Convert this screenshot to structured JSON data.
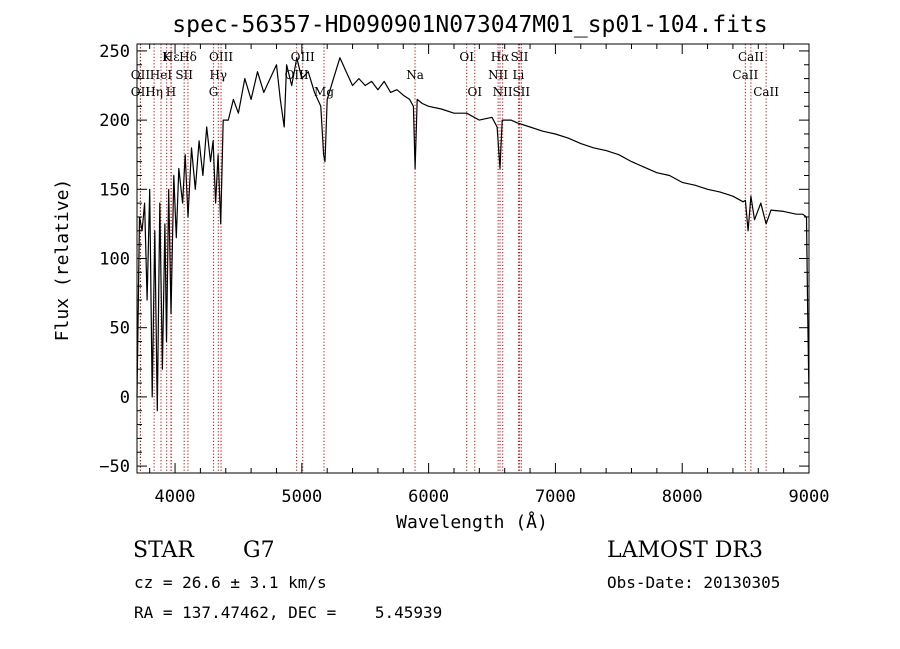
{
  "chart_data": {
    "type": "line",
    "title": "spec-56357-HD090901N073047M01_sp01-104.fits",
    "xlabel": "Wavelength (Å)",
    "ylabel": "Flux (relative)",
    "xlim": [
      3700,
      9000
    ],
    "ylim": [
      -55,
      255
    ],
    "xticks": [
      4000,
      5000,
      6000,
      7000,
      8000,
      9000
    ],
    "xtick_labels": [
      "4000",
      "5000",
      "6000",
      "7000",
      "8000",
      "9000"
    ],
    "yticks": [
      -50,
      0,
      50,
      100,
      150,
      200,
      250
    ],
    "ytick_labels": [
      "−50",
      "0",
      "50",
      "100",
      "150",
      "200",
      "250"
    ],
    "grid": false,
    "series": [
      {
        "name": "spectrum",
        "x": [
          3700,
          3720,
          3740,
          3760,
          3780,
          3800,
          3820,
          3840,
          3860,
          3880,
          3900,
          3920,
          3933,
          3950,
          3968,
          3990,
          4010,
          4030,
          4060,
          4080,
          4102,
          4130,
          4160,
          4190,
          4220,
          4250,
          4280,
          4300,
          4320,
          4340,
          4360,
          4380,
          4420,
          4460,
          4500,
          4550,
          4600,
          4650,
          4700,
          4750,
          4800,
          4830,
          4861,
          4880,
          4920,
          4960,
          5000,
          5050,
          5100,
          5150,
          5172,
          5183,
          5200,
          5250,
          5300,
          5350,
          5400,
          5450,
          5500,
          5550,
          5600,
          5650,
          5700,
          5750,
          5800,
          5850,
          5880,
          5893,
          5910,
          5950,
          6000,
          6100,
          6200,
          6300,
          6400,
          6500,
          6540,
          6563,
          6580,
          6650,
          6700,
          6800,
          6900,
          7000,
          7100,
          7200,
          7300,
          7400,
          7500,
          7600,
          7700,
          7800,
          7900,
          8000,
          8100,
          8200,
          8300,
          8400,
          8480,
          8498,
          8520,
          8542,
          8570,
          8620,
          8662,
          8700,
          8800,
          8900,
          8950,
          8980,
          8990,
          9000
        ],
        "values": [
          0,
          130,
          120,
          140,
          70,
          150,
          0,
          120,
          -10,
          140,
          20,
          125,
          40,
          150,
          60,
          160,
          115,
          165,
          140,
          175,
          130,
          180,
          150,
          185,
          160,
          195,
          170,
          185,
          140,
          175,
          125,
          200,
          200,
          215,
          205,
          230,
          215,
          235,
          220,
          230,
          240,
          215,
          195,
          240,
          225,
          245,
          230,
          235,
          220,
          210,
          175,
          170,
          215,
          230,
          245,
          235,
          225,
          230,
          225,
          228,
          222,
          228,
          220,
          222,
          218,
          215,
          210,
          165,
          215,
          212,
          210,
          208,
          205,
          205,
          200,
          202,
          195,
          165,
          200,
          200,
          198,
          195,
          192,
          190,
          187,
          183,
          180,
          178,
          175,
          170,
          166,
          162,
          160,
          155,
          153,
          150,
          148,
          145,
          141,
          142,
          120,
          145,
          128,
          140,
          125,
          135,
          134,
          132,
          132,
          130,
          60,
          0
        ]
      }
    ],
    "lines": [
      {
        "label": "Hε",
        "x": 3970,
        "row": 1
      },
      {
        "label": "OII",
        "x": 3727,
        "row": 2
      },
      {
        "label": "OII",
        "x": 3727,
        "row": 3
      },
      {
        "label": "Hη",
        "x": 3835,
        "row": 3
      },
      {
        "label": "K",
        "x": 3934,
        "row": 1
      },
      {
        "label": "HeI",
        "x": 3889,
        "row": 2
      },
      {
        "label": "H",
        "x": 3968,
        "row": 3
      },
      {
        "label": "SII",
        "x": 4072,
        "row": 2
      },
      {
        "label": "Hδ",
        "x": 4102,
        "row": 1
      },
      {
        "label": "OIII",
        "x": 4363,
        "row": 1
      },
      {
        "label": "Hγ",
        "x": 4341,
        "row": 2
      },
      {
        "label": "G",
        "x": 4304,
        "row": 3
      },
      {
        "label": "OIII",
        "x": 5007,
        "row": 1
      },
      {
        "label": "OIII",
        "x": 4959,
        "row": 2
      },
      {
        "label": "Mg",
        "x": 5175,
        "row": 3
      },
      {
        "label": "Na",
        "x": 5893,
        "row": 2
      },
      {
        "label": "OI",
        "x": 6300,
        "row": 1
      },
      {
        "label": "OI",
        "x": 6364,
        "row": 3
      },
      {
        "label": "Hα",
        "x": 6563,
        "row": 1
      },
      {
        "label": "NII",
        "x": 6548,
        "row": 2
      },
      {
        "label": "NII",
        "x": 6584,
        "row": 3
      },
      {
        "label": "SII",
        "x": 6717,
        "row": 1
      },
      {
        "label": "Li",
        "x": 6708,
        "row": 2
      },
      {
        "label": "SII",
        "x": 6731,
        "row": 3
      },
      {
        "label": "CaII",
        "x": 8542,
        "row": 1
      },
      {
        "label": "CaII",
        "x": 8498,
        "row": 2
      },
      {
        "label": "CaII",
        "x": 8662,
        "row": 3
      }
    ],
    "line_color": "#c00000"
  },
  "info": {
    "class_label": "STAR",
    "subclass": "G7",
    "survey": "LAMOST DR3",
    "cz": "cz = 26.6 ± 3.1 km/s",
    "obs_date": "Obs-Date: 20130305",
    "radec": "RA = 137.47462, DEC =    5.45939"
  }
}
